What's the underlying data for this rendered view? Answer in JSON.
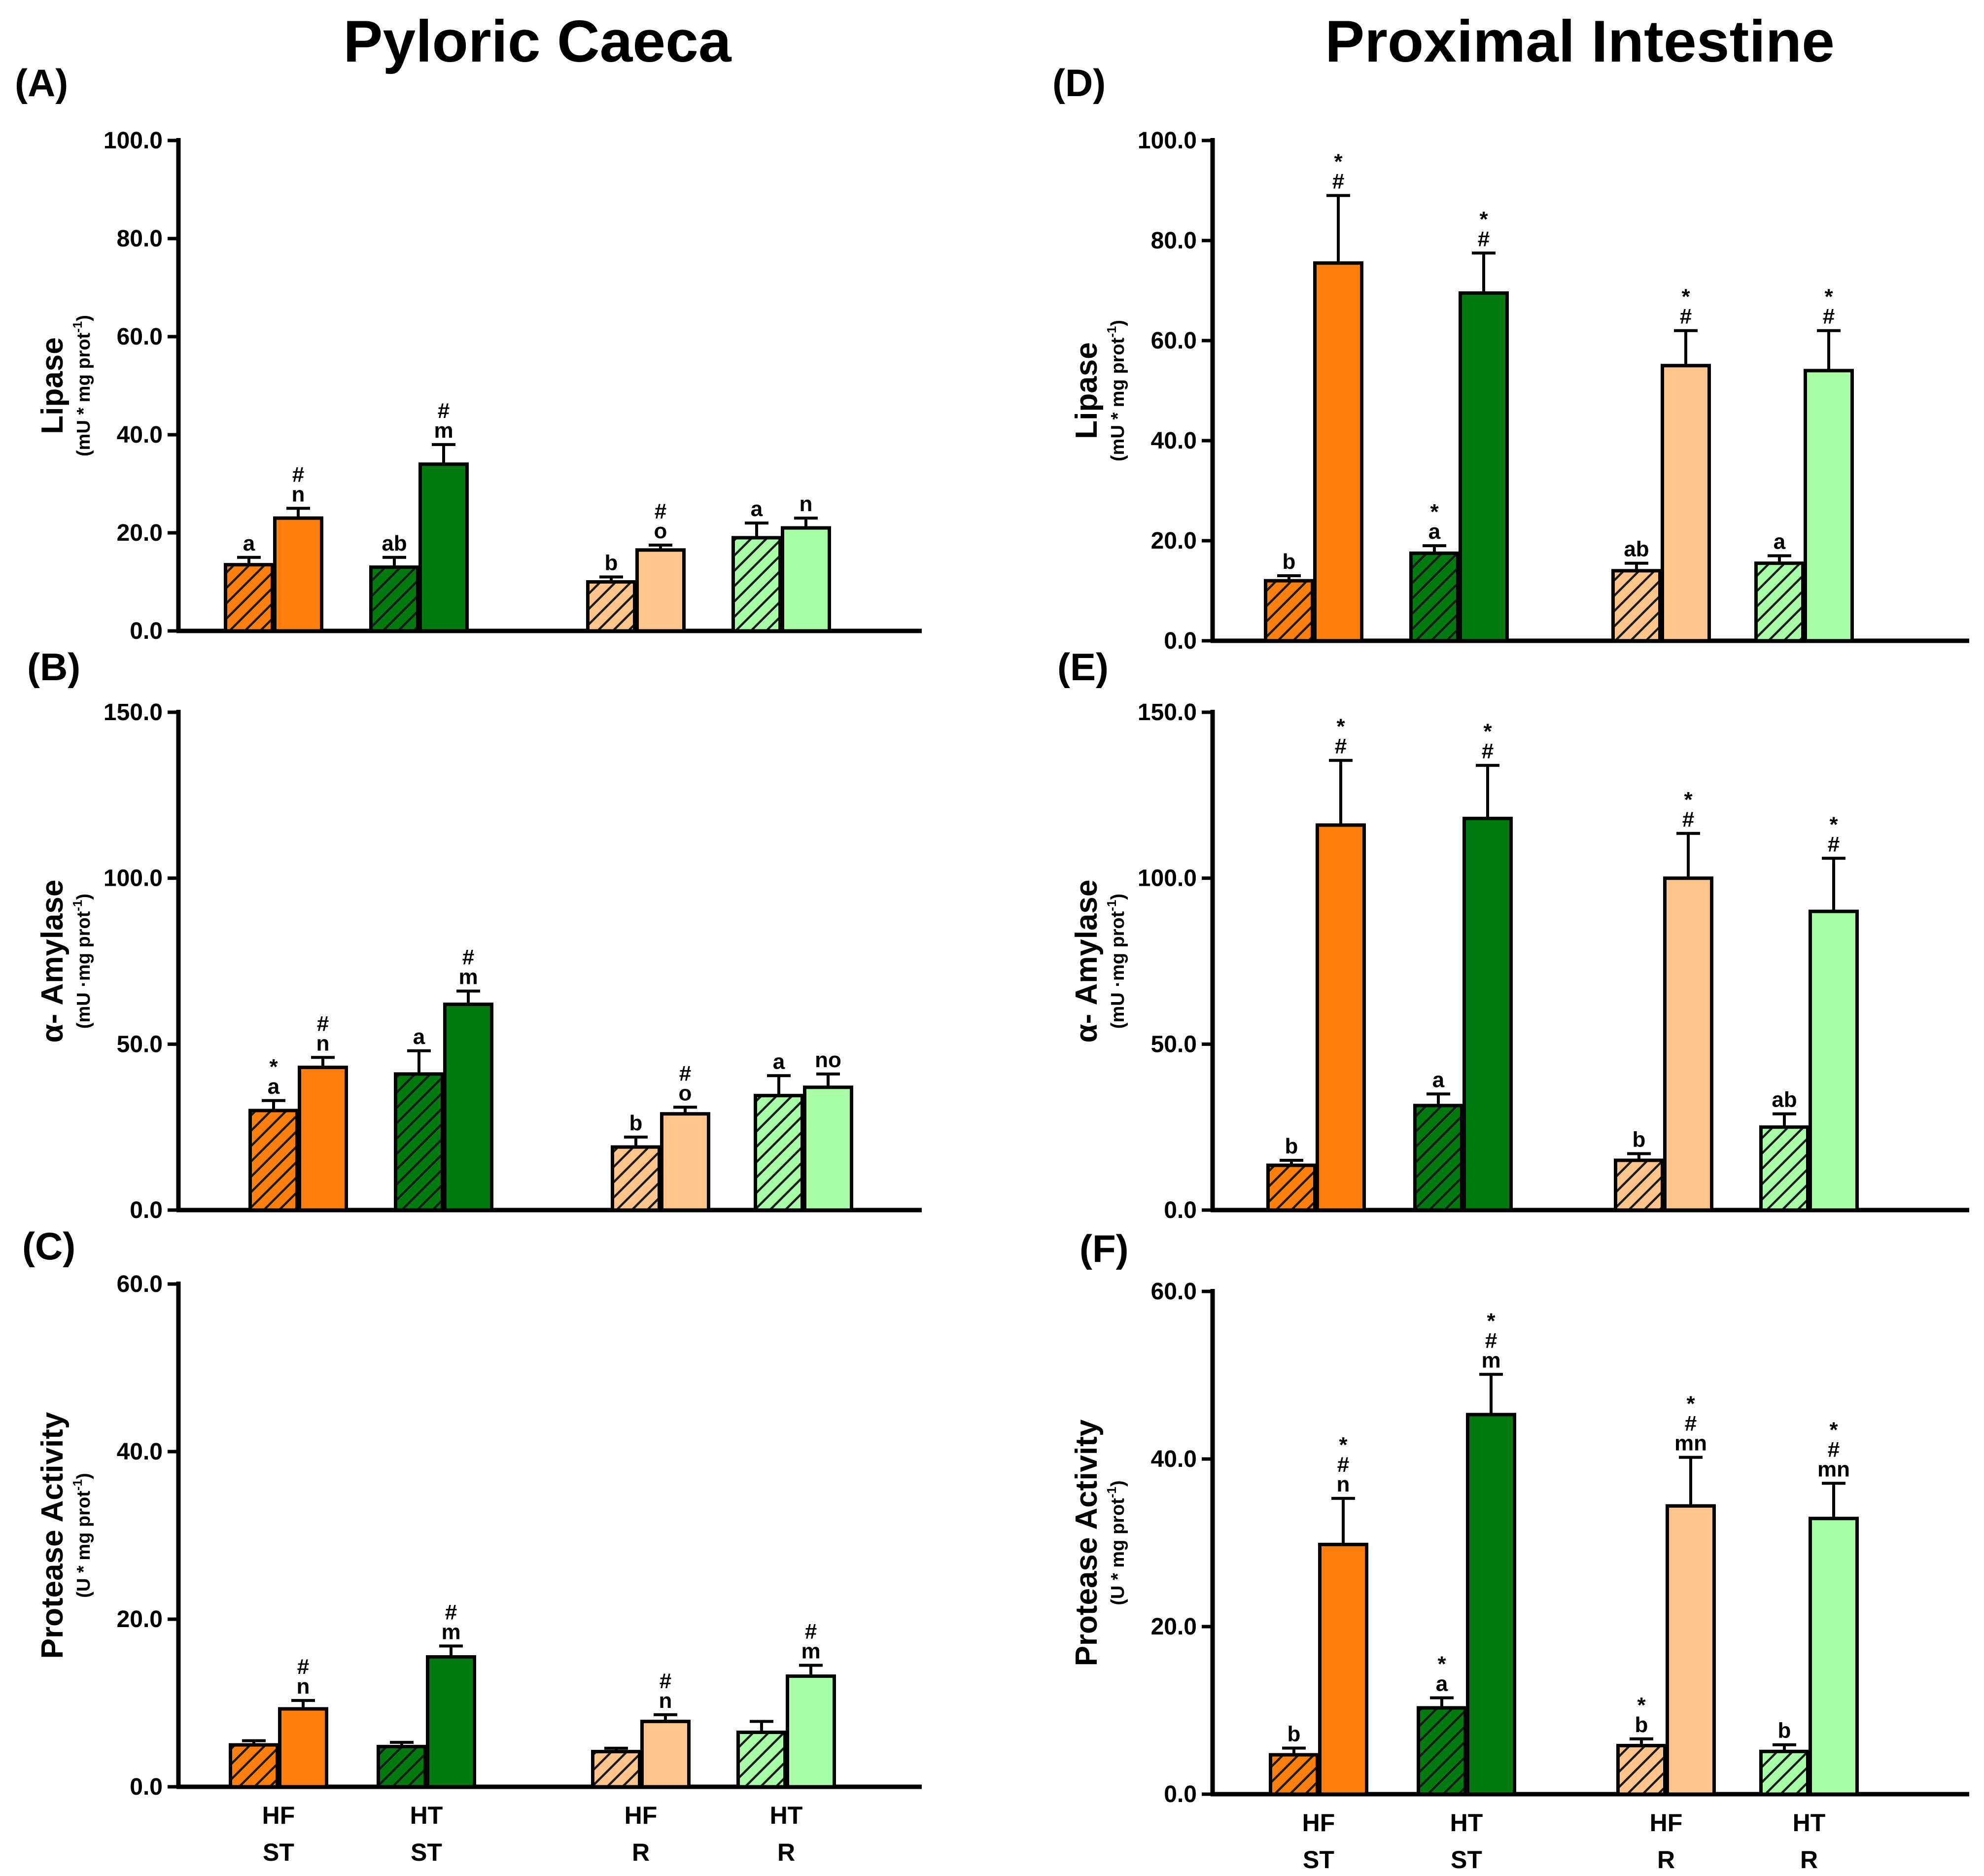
{
  "figure": {
    "titles": {
      "left": "Pyloric Caeca",
      "right": "Proximal Intestine"
    },
    "x_groups": [
      {
        "line1": "HF",
        "line2": "ST"
      },
      {
        "line1": "HT",
        "line2": "ST"
      },
      {
        "line1": "HF",
        "line2": "R"
      },
      {
        "line1": "HT",
        "line2": "R"
      }
    ]
  },
  "colors": {
    "HF_ST": "#ff7f0e",
    "HT_ST": "#007a0f",
    "HF_R": "#ffc48c",
    "HT_R": "#a8ffa8",
    "axis": "#000000"
  },
  "chart_data": [
    {
      "id": "A",
      "panel_label": "(A)",
      "type": "bar",
      "title": "Pyloric Caeca",
      "ylabel": "Lipase",
      "yunit_main": "(mU * mg prot",
      "yunit_sup": "-1",
      "yunit_end": ")",
      "ylim": [
        0,
        100
      ],
      "yticks": [
        "0.0",
        "20.0",
        "40.0",
        "60.0",
        "80.0",
        "100.0"
      ],
      "categories": [
        "HF ST",
        "HT ST",
        "HF R",
        "HT R"
      ],
      "series": [
        {
          "name": "hatched",
          "values": [
            13.5,
            13,
            10,
            19
          ],
          "errors": [
            1.5,
            2,
            1,
            3
          ],
          "annotations": [
            [
              "a"
            ],
            [
              "ab"
            ],
            [
              "b"
            ],
            [
              "a"
            ]
          ]
        },
        {
          "name": "solid",
          "values": [
            23,
            34,
            16.5,
            21
          ],
          "errors": [
            2,
            4,
            1,
            2
          ],
          "annotations": [
            [
              "n",
              "#"
            ],
            [
              "m",
              "#"
            ],
            [
              "o",
              "#"
            ],
            [
              "n"
            ]
          ]
        }
      ]
    },
    {
      "id": "B",
      "panel_label": "(B)",
      "type": "bar",
      "ylabel": "α- Amylase",
      "yunit_main": "(mU ·mg prot",
      "yunit_sup": "-1",
      "yunit_end": ")",
      "ylim": [
        0,
        150
      ],
      "yticks": [
        "0.0",
        "50.0",
        "100.0",
        "150.0"
      ],
      "categories": [
        "HF ST",
        "HT ST",
        "HF R",
        "HT R"
      ],
      "series": [
        {
          "name": "hatched",
          "values": [
            30,
            41,
            19,
            34.5
          ],
          "errors": [
            3,
            7,
            3,
            6
          ],
          "annotations": [
            [
              "a",
              "*"
            ],
            [
              "a"
            ],
            [
              "b"
            ],
            [
              "a"
            ]
          ]
        },
        {
          "name": "solid",
          "values": [
            43,
            62,
            29,
            37
          ],
          "errors": [
            3,
            4,
            2,
            4
          ],
          "annotations": [
            [
              "n",
              "#"
            ],
            [
              "m",
              "#"
            ],
            [
              "o",
              "#"
            ],
            [
              "no"
            ]
          ]
        }
      ]
    },
    {
      "id": "C",
      "panel_label": "(C)",
      "type": "bar",
      "ylabel": "Protease Activity",
      "yunit_main": "(U * mg prot",
      "yunit_sup": "-1",
      "yunit_end": ")",
      "ylim": [
        0,
        60
      ],
      "yticks": [
        "0.0",
        "20.0",
        "40.0",
        "60.0"
      ],
      "categories": [
        "HF ST",
        "HT ST",
        "HF R",
        "HT R"
      ],
      "series": [
        {
          "name": "hatched",
          "values": [
            5,
            4.8,
            4.2,
            6.5
          ],
          "errors": [
            0.5,
            0.5,
            0.4,
            1.3
          ],
          "annotations": [
            [],
            [],
            [],
            []
          ]
        },
        {
          "name": "solid",
          "values": [
            9.3,
            15.5,
            7.8,
            13.2
          ],
          "errors": [
            1,
            1.3,
            0.8,
            1.3
          ],
          "annotations": [
            [
              "n",
              "#"
            ],
            [
              "m",
              "#"
            ],
            [
              "n",
              "#"
            ],
            [
              "m",
              "#"
            ]
          ]
        }
      ]
    },
    {
      "id": "D",
      "panel_label": "(D)",
      "type": "bar",
      "title": "Proximal Intestine",
      "ylabel": "Lipase",
      "yunit_main": "(mU * mg prot",
      "yunit_sup": "-1",
      "yunit_end": ")",
      "ylim": [
        0,
        100
      ],
      "yticks": [
        "0.0",
        "20.0",
        "40.0",
        "60.0",
        "80.0",
        "100.0"
      ],
      "categories": [
        "HF ST",
        "HT ST",
        "HF R",
        "HT R"
      ],
      "series": [
        {
          "name": "hatched",
          "values": [
            12,
            17.5,
            14,
            15.5
          ],
          "errors": [
            1,
            1.5,
            1.5,
            1.5
          ],
          "annotations": [
            [
              "b"
            ],
            [
              "a",
              "*"
            ],
            [
              "ab"
            ],
            [
              "a"
            ]
          ]
        },
        {
          "name": "solid",
          "values": [
            75.5,
            69.5,
            55,
            54
          ],
          "errors": [
            13.5,
            8,
            7,
            8
          ],
          "annotations": [
            [
              "#",
              "*"
            ],
            [
              "#",
              "*"
            ],
            [
              "#",
              "*"
            ],
            [
              "#",
              "*"
            ]
          ]
        }
      ]
    },
    {
      "id": "E",
      "panel_label": "(E)",
      "type": "bar",
      "ylabel": "α- Amylase",
      "yunit_main": "(mU ·mg prot",
      "yunit_sup": "-1",
      "yunit_end": ")",
      "ylim": [
        0,
        150
      ],
      "yticks": [
        "0.0",
        "50.0",
        "100.0",
        "150.0"
      ],
      "categories": [
        "HF ST",
        "HT ST",
        "HF R",
        "HT R"
      ],
      "series": [
        {
          "name": "hatched",
          "values": [
            13.5,
            31.5,
            15,
            25
          ],
          "errors": [
            1.5,
            3.5,
            2,
            4
          ],
          "annotations": [
            [
              "b"
            ],
            [
              "a"
            ],
            [
              "b"
            ],
            [
              "ab"
            ]
          ]
        },
        {
          "name": "solid",
          "values": [
            116,
            118,
            100,
            90
          ],
          "errors": [
            19.5,
            16,
            13.5,
            16
          ],
          "annotations": [
            [
              "#",
              "*"
            ],
            [
              "#",
              "*"
            ],
            [
              "#",
              "*"
            ],
            [
              "#",
              "*"
            ]
          ]
        }
      ]
    },
    {
      "id": "F",
      "panel_label": "(F)",
      "type": "bar",
      "ylabel": "Protease Activity",
      "yunit_main": "(U * mg prot",
      "yunit_sup": "-1",
      "yunit_end": ")",
      "ylim": [
        0,
        60
      ],
      "yticks": [
        "0.0",
        "20.0",
        "40.0",
        "60.0"
      ],
      "categories": [
        "HF ST",
        "HT ST",
        "HF R",
        "HT R"
      ],
      "series": [
        {
          "name": "hatched",
          "values": [
            4.7,
            10.3,
            5.8,
            5.1
          ],
          "errors": [
            0.8,
            1.2,
            0.8,
            0.8
          ],
          "annotations": [
            [
              "b"
            ],
            [
              "a",
              "*"
            ],
            [
              "b",
              "*"
            ],
            [
              "b"
            ]
          ]
        },
        {
          "name": "solid",
          "values": [
            29.8,
            45.3,
            34.4,
            32.9
          ],
          "errors": [
            5.5,
            4.8,
            5.8,
            4.2
          ],
          "annotations": [
            [
              "n",
              "#",
              "*"
            ],
            [
              "m",
              "#",
              "*"
            ],
            [
              "mn",
              "#",
              "*"
            ],
            [
              "mn",
              "#",
              "*"
            ]
          ]
        }
      ]
    }
  ]
}
